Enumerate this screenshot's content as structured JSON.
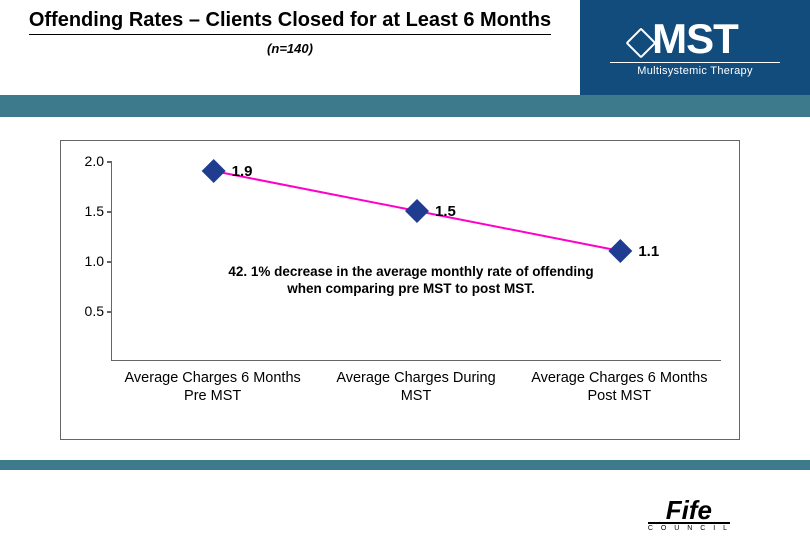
{
  "header": {
    "title": "Offending Rates – Clients Closed for at Least 6 Months",
    "subtitle": "(n=140)"
  },
  "logo": {
    "main": "MST",
    "sub": "Multisystemic Therapy"
  },
  "chart": {
    "type": "line",
    "ylim": [
      0,
      2.0
    ],
    "yticks": [
      0.5,
      1.0,
      1.5,
      2.0
    ],
    "ytick_labels": [
      "0.5",
      "1.0",
      "1.5",
      "2.0"
    ],
    "categories": [
      "Average Charges 6 Months Pre MST",
      "Average Charges During MST",
      "Average Charges 6 Months Post MST"
    ],
    "values": [
      1.9,
      1.5,
      1.1
    ],
    "value_labels": [
      "1.9",
      "1.5",
      "1.1"
    ],
    "line_color": "#ff00c8",
    "line_width": 2,
    "marker_shape": "diamond",
    "marker_color": "#1f3c91",
    "marker_size": 24,
    "label_fontsize": 15,
    "axis_fontsize": 14,
    "background_color": "#ffffff",
    "border_color": "#666666"
  },
  "annotation": "42. 1% decrease in the average monthly rate of offending when comparing pre MST to post MST.",
  "footer_logo": {
    "text": "Fife",
    "sub": "C O U N C I L"
  },
  "colors": {
    "header_blue": "#124c7c",
    "teal_bar": "#3d7a8c"
  }
}
